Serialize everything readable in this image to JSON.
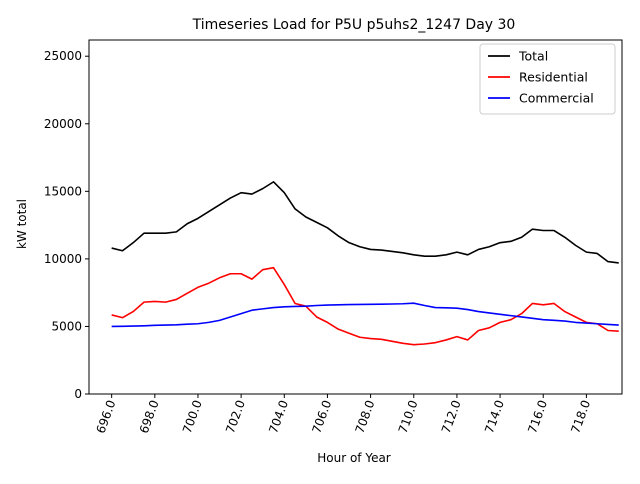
{
  "chart_data": {
    "type": "line",
    "title": "Timeseries Load for P5U p5uhs2_1247  Day 30",
    "xlabel": "Hour of Year",
    "ylabel": "kW total",
    "xlim": [
      694.95,
      719.65
    ],
    "ylim": [
      0,
      26200
    ],
    "x_ticks": [
      696,
      698,
      700,
      702,
      704,
      706,
      708,
      710,
      712,
      714,
      716,
      718
    ],
    "x_tick_labels": [
      "696.0",
      "698.0",
      "700.0",
      "702.0",
      "704.0",
      "706.0",
      "708.0",
      "710.0",
      "712.0",
      "714.0",
      "716.0",
      "718.0"
    ],
    "y_ticks": [
      0,
      5000,
      10000,
      15000,
      20000,
      25000
    ],
    "y_tick_labels": [
      "0",
      "5000",
      "10000",
      "15000",
      "20000",
      "25000"
    ],
    "grid": false,
    "legend_position": "top-right",
    "series": [
      {
        "name": "Total",
        "color": "#000000",
        "points": [
          [
            696.0,
            10800
          ],
          [
            696.5,
            10600
          ],
          [
            697.0,
            11200
          ],
          [
            697.5,
            11900
          ],
          [
            698.0,
            11900
          ],
          [
            698.5,
            11900
          ],
          [
            699.0,
            12000
          ],
          [
            699.5,
            12600
          ],
          [
            700.0,
            13000
          ],
          [
            700.5,
            13500
          ],
          [
            701.0,
            14000
          ],
          [
            701.5,
            14500
          ],
          [
            702.0,
            14900
          ],
          [
            702.5,
            14800
          ],
          [
            703.0,
            15200
          ],
          [
            703.5,
            15700
          ],
          [
            704.0,
            14900
          ],
          [
            704.5,
            13700
          ],
          [
            705.0,
            13100
          ],
          [
            705.5,
            12700
          ],
          [
            706.0,
            12300
          ],
          [
            706.5,
            11700
          ],
          [
            707.0,
            11200
          ],
          [
            707.5,
            10900
          ],
          [
            708.0,
            10700
          ],
          [
            708.5,
            10650
          ],
          [
            709.0,
            10550
          ],
          [
            709.5,
            10450
          ],
          [
            710.0,
            10300
          ],
          [
            710.5,
            10200
          ],
          [
            711.0,
            10200
          ],
          [
            711.5,
            10300
          ],
          [
            712.0,
            10500
          ],
          [
            712.5,
            10300
          ],
          [
            713.0,
            10700
          ],
          [
            713.5,
            10900
          ],
          [
            714.0,
            11200
          ],
          [
            714.5,
            11300
          ],
          [
            715.0,
            11600
          ],
          [
            715.5,
            12200
          ],
          [
            716.0,
            12100
          ],
          [
            716.5,
            12100
          ],
          [
            717.0,
            11600
          ],
          [
            717.5,
            11000
          ],
          [
            718.0,
            10500
          ],
          [
            718.5,
            10400
          ],
          [
            719.0,
            9800
          ],
          [
            719.5,
            9700
          ]
        ]
      },
      {
        "name": "Residential",
        "color": "#ff0000",
        "points": [
          [
            696.0,
            5850
          ],
          [
            696.5,
            5650
          ],
          [
            697.0,
            6100
          ],
          [
            697.5,
            6800
          ],
          [
            698.0,
            6850
          ],
          [
            698.5,
            6800
          ],
          [
            699.0,
            7000
          ],
          [
            699.5,
            7450
          ],
          [
            700.0,
            7900
          ],
          [
            700.5,
            8200
          ],
          [
            701.0,
            8600
          ],
          [
            701.5,
            8900
          ],
          [
            702.0,
            8900
          ],
          [
            702.5,
            8500
          ],
          [
            703.0,
            9200
          ],
          [
            703.5,
            9350
          ],
          [
            704.0,
            8100
          ],
          [
            704.5,
            6700
          ],
          [
            705.0,
            6500
          ],
          [
            705.5,
            5700
          ],
          [
            706.0,
            5300
          ],
          [
            706.5,
            4800
          ],
          [
            707.0,
            4500
          ],
          [
            707.5,
            4200
          ],
          [
            708.0,
            4100
          ],
          [
            708.5,
            4050
          ],
          [
            709.0,
            3900
          ],
          [
            709.5,
            3750
          ],
          [
            710.0,
            3650
          ],
          [
            710.5,
            3700
          ],
          [
            711.0,
            3800
          ],
          [
            711.5,
            4000
          ],
          [
            712.0,
            4250
          ],
          [
            712.5,
            4000
          ],
          [
            713.0,
            4700
          ],
          [
            713.5,
            4900
          ],
          [
            714.0,
            5300
          ],
          [
            714.5,
            5500
          ],
          [
            715.0,
            5950
          ],
          [
            715.5,
            6700
          ],
          [
            716.0,
            6600
          ],
          [
            716.5,
            6700
          ],
          [
            717.0,
            6100
          ],
          [
            717.5,
            5700
          ],
          [
            718.0,
            5300
          ],
          [
            718.5,
            5200
          ],
          [
            719.0,
            4700
          ],
          [
            719.5,
            4650
          ]
        ]
      },
      {
        "name": "Commercial",
        "color": "#0000ff",
        "points": [
          [
            696.0,
            5000
          ],
          [
            696.5,
            5010
          ],
          [
            697.0,
            5030
          ],
          [
            697.5,
            5050
          ],
          [
            698.0,
            5080
          ],
          [
            698.5,
            5100
          ],
          [
            699.0,
            5120
          ],
          [
            699.5,
            5170
          ],
          [
            700.0,
            5200
          ],
          [
            700.5,
            5300
          ],
          [
            701.0,
            5450
          ],
          [
            701.5,
            5700
          ],
          [
            702.0,
            5950
          ],
          [
            702.5,
            6200
          ],
          [
            703.0,
            6300
          ],
          [
            703.5,
            6400
          ],
          [
            704.0,
            6450
          ],
          [
            704.5,
            6480
          ],
          [
            705.0,
            6500
          ],
          [
            705.5,
            6550
          ],
          [
            706.0,
            6580
          ],
          [
            706.5,
            6600
          ],
          [
            707.0,
            6620
          ],
          [
            707.5,
            6630
          ],
          [
            708.0,
            6640
          ],
          [
            708.5,
            6650
          ],
          [
            709.0,
            6660
          ],
          [
            709.5,
            6680
          ],
          [
            710.0,
            6720
          ],
          [
            710.5,
            6550
          ],
          [
            711.0,
            6400
          ],
          [
            711.5,
            6380
          ],
          [
            712.0,
            6350
          ],
          [
            712.5,
            6250
          ],
          [
            713.0,
            6100
          ],
          [
            713.5,
            6000
          ],
          [
            714.0,
            5900
          ],
          [
            714.5,
            5800
          ],
          [
            715.0,
            5700
          ],
          [
            715.5,
            5600
          ],
          [
            716.0,
            5500
          ],
          [
            716.5,
            5450
          ],
          [
            717.0,
            5400
          ],
          [
            717.5,
            5300
          ],
          [
            718.0,
            5250
          ],
          [
            718.5,
            5200
          ],
          [
            719.0,
            5150
          ],
          [
            719.5,
            5100
          ]
        ]
      }
    ]
  }
}
